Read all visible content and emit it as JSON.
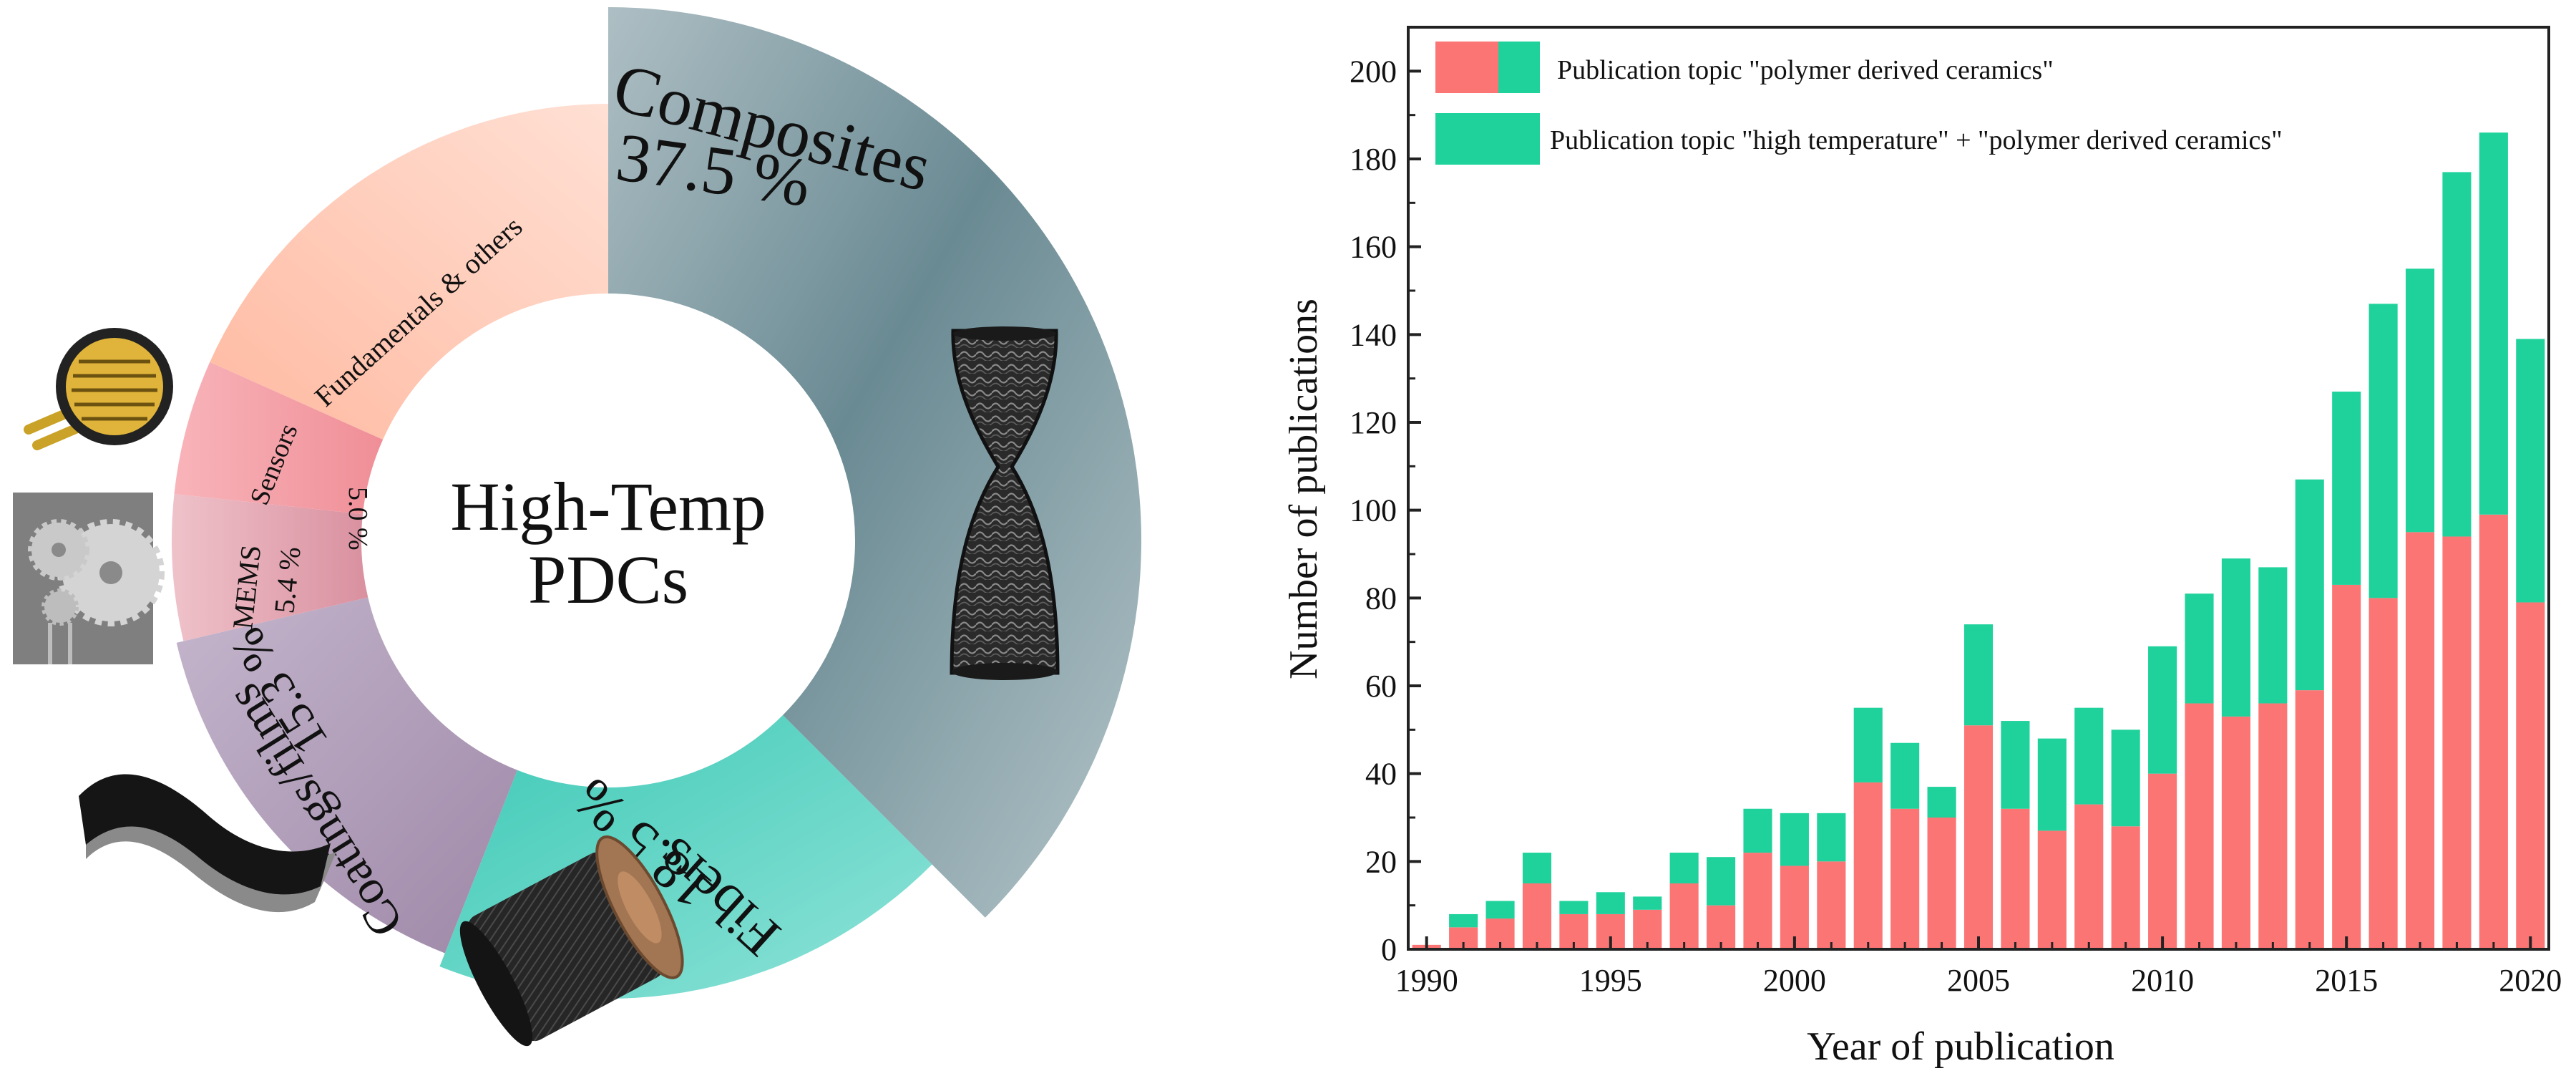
{
  "colors": {
    "composites": "#6e8d96",
    "fibers": "#4ecdbe",
    "coatings": "#b4a3bd",
    "mems": "#e5adb7",
    "sensors": "#f6a9af",
    "fundamentals": "#ffc3ad",
    "pdc_only": "#fb7575",
    "high_temp": "#1fd29b",
    "axis": "#222222"
  },
  "icons": [
    "fiber-weave-tube-icon",
    "fiber-spool-icon",
    "coated-film-icon",
    "mems-gears-icon",
    "sensor-chip-icon"
  ],
  "chart_data": [
    {
      "type": "pie",
      "center_label": [
        "High-Temp",
        "PDCs"
      ],
      "slices": [
        {
          "key": "composites",
          "name": "Composites",
          "pct_text": "37.5 %",
          "value": 37.5
        },
        {
          "key": "fibers",
          "name": "Fibers",
          "pct_text": "18.5 %",
          "value": 18.5
        },
        {
          "key": "coatings",
          "name": "Coatings/films",
          "pct_text": "15.3 %",
          "value": 15.3
        },
        {
          "key": "mems",
          "name": "MEMS",
          "pct_text": "5.4 %",
          "value": 5.4
        },
        {
          "key": "sensors",
          "name": "Sensors",
          "pct_text": "5.0 %",
          "value": 5.0
        },
        {
          "key": "fundamentals",
          "name": "Fundamentals & others",
          "pct_text": "",
          "value": 18.3
        }
      ]
    },
    {
      "type": "bar",
      "stacked": true,
      "xlabel": "Year of publication",
      "ylabel": "Number of publications",
      "x": [
        1990,
        1991,
        1992,
        1993,
        1994,
        1995,
        1996,
        1997,
        1998,
        1999,
        2000,
        2001,
        2002,
        2003,
        2004,
        2005,
        2006,
        2007,
        2008,
        2009,
        2010,
        2011,
        2012,
        2013,
        2014,
        2015,
        2016,
        2017,
        2018,
        2019,
        2020
      ],
      "series": [
        {
          "name": "Publication topic \"polymer derived ceramics\"",
          "color_key": "pdc_only",
          "values": [
            1,
            5,
            7,
            15,
            8,
            8,
            9,
            15,
            10,
            22,
            19,
            20,
            38,
            32,
            30,
            51,
            32,
            27,
            33,
            28,
            40,
            56,
            53,
            56,
            59,
            83,
            80,
            95,
            94,
            99,
            79
          ]
        },
        {
          "name": "Publication topic \"high temperature\" + \"polymer derived ceramics\"",
          "color_key": "high_temp",
          "values": [
            0,
            3,
            4,
            7,
            3,
            5,
            3,
            7,
            11,
            10,
            12,
            11,
            17,
            15,
            7,
            23,
            20,
            21,
            22,
            22,
            29,
            25,
            36,
            31,
            48,
            44,
            67,
            60,
            83,
            87,
            60
          ]
        }
      ],
      "ylim": [
        0,
        210
      ],
      "yticks": [
        0,
        20,
        40,
        60,
        80,
        100,
        120,
        140,
        160,
        180,
        200
      ],
      "xticks": [
        1990,
        1995,
        2000,
        2005,
        2010,
        2015,
        2020
      ],
      "xlim": [
        1989.5,
        2020.5
      ],
      "legend_position": "top-left"
    }
  ]
}
